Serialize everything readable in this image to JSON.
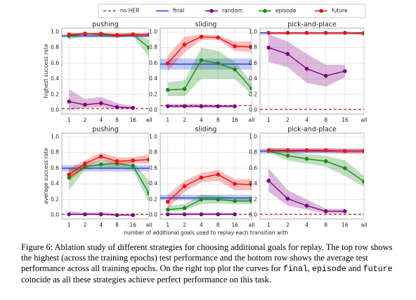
{
  "chart_data": [
    {
      "type": "line",
      "title": "pushing",
      "ylabel": "highest success rate",
      "grid": true,
      "categories": [
        "1",
        "2",
        "4",
        "8",
        "16",
        "all"
      ],
      "ylim": [
        -0.05,
        1.05
      ],
      "yticks": [
        {
          "value": 0,
          "label": "0.0"
        },
        {
          "value": 0.2,
          "label": "0.2"
        },
        {
          "value": 0.4,
          "label": "0.4"
        },
        {
          "value": 0.6,
          "label": "0.6"
        },
        {
          "value": 0.8,
          "label": "0.8"
        },
        {
          "value": 1,
          "label": "1.0"
        }
      ],
      "series": [
        {
          "name": "no HER",
          "color": "#c0392b",
          "dashed": true,
          "values": [
            0.02,
            0.02,
            0.02,
            0.02,
            0.02,
            0.02
          ]
        },
        {
          "name": "final",
          "color": "#1f3fe0",
          "values": [
            0.95,
            0.95,
            0.95,
            0.95,
            0.95,
            0.95
          ],
          "lower": [
            0.93,
            0.93,
            0.93,
            0.93,
            0.93,
            0.93
          ],
          "upper": [
            0.97,
            0.97,
            0.97,
            0.97,
            0.97,
            0.97
          ]
        },
        {
          "name": "random",
          "color": "#800080",
          "marker": true,
          "values": [
            0.11,
            0.07,
            0.09,
            0.04,
            0.03,
            null
          ],
          "lower": [
            0.0,
            0.03,
            0.04,
            0.01,
            0.02,
            null
          ],
          "upper": [
            0.27,
            0.14,
            0.17,
            0.09,
            0.05,
            null
          ]
        },
        {
          "name": "episode",
          "color": "#1a8a1a",
          "marker": true,
          "values": [
            0.95,
            0.98,
            0.97,
            0.96,
            0.97,
            0.8
          ],
          "lower": [
            0.9,
            0.96,
            0.94,
            0.93,
            0.95,
            0.68
          ],
          "upper": [
            0.98,
            0.99,
            0.99,
            0.98,
            0.99,
            0.9
          ]
        },
        {
          "name": "future",
          "color": "#f01010",
          "marker": true,
          "values": [
            0.97,
            0.98,
            0.98,
            0.96,
            0.97,
            0.97
          ],
          "lower": [
            0.95,
            0.97,
            0.97,
            0.93,
            0.95,
            0.95
          ],
          "upper": [
            0.99,
            0.99,
            0.99,
            0.99,
            0.99,
            0.99
          ]
        }
      ]
    },
    {
      "type": "line",
      "title": "sliding",
      "grid": true,
      "categories": [
        "1",
        "2",
        "4",
        "8",
        "16",
        "all"
      ],
      "ylim": [
        -0.05,
        1.05
      ],
      "yticks": [
        {
          "value": 0,
          "label": "0.0"
        },
        {
          "value": 0.2,
          "label": "0.2"
        },
        {
          "value": 0.4,
          "label": "0.4"
        },
        {
          "value": 0.6,
          "label": "0.6"
        },
        {
          "value": 0.8,
          "label": "0.8"
        },
        {
          "value": 1,
          "label": "1.0"
        }
      ],
      "series": [
        {
          "name": "no HER",
          "color": "#c0392b",
          "dashed": true,
          "values": [
            0.06,
            0.06,
            0.06,
            0.06,
            0.06,
            0.06
          ]
        },
        {
          "name": "final",
          "color": "#1f3fe0",
          "values": [
            0.59,
            0.59,
            0.59,
            0.59,
            0.59,
            0.59
          ],
          "lower": [
            0.52,
            0.52,
            0.52,
            0.52,
            0.52,
            0.52
          ],
          "upper": [
            0.66,
            0.66,
            0.66,
            0.66,
            0.66,
            0.66
          ]
        },
        {
          "name": "random",
          "color": "#800080",
          "marker": true,
          "values": [
            0.05,
            0.05,
            0.05,
            0.05,
            0.05,
            null
          ],
          "lower": [
            0.03,
            0.03,
            0.03,
            0.03,
            0.03,
            null
          ],
          "upper": [
            0.08,
            0.08,
            0.08,
            0.07,
            0.07,
            null
          ]
        },
        {
          "name": "episode",
          "color": "#1a8a1a",
          "marker": true,
          "values": [
            0.26,
            0.27,
            0.64,
            0.6,
            0.52,
            0.28
          ],
          "lower": [
            0.18,
            0.18,
            0.4,
            0.4,
            0.4,
            0.2
          ],
          "upper": [
            0.36,
            0.38,
            0.8,
            0.76,
            0.62,
            0.36
          ]
        },
        {
          "name": "future",
          "color": "#f01010",
          "marker": true,
          "values": [
            0.6,
            0.84,
            0.94,
            0.93,
            0.82,
            0.81
          ],
          "lower": [
            0.5,
            0.74,
            0.9,
            0.9,
            0.76,
            0.74
          ],
          "upper": [
            0.7,
            0.94,
            0.97,
            0.96,
            0.88,
            0.88
          ]
        }
      ]
    },
    {
      "type": "line",
      "title": "pick-and-place",
      "grid": true,
      "categories": [
        "1",
        "2",
        "4",
        "8",
        "16",
        "all"
      ],
      "ylim": [
        -0.05,
        1.05
      ],
      "yticks": [
        {
          "value": 0,
          "label": "0.0"
        },
        {
          "value": 0.2,
          "label": "0.2"
        },
        {
          "value": 0.4,
          "label": "0.4"
        },
        {
          "value": 0.6,
          "label": "0.6"
        },
        {
          "value": 0.8,
          "label": "0.8"
        },
        {
          "value": 1,
          "label": "1.0"
        }
      ],
      "series": [
        {
          "name": "no HER",
          "color": "#c0392b",
          "dashed": true,
          "values": [
            0.01,
            0.01,
            0.01,
            0.01,
            0.01,
            0.01
          ]
        },
        {
          "name": "final",
          "color": "#1f3fe0",
          "values": [
            0.99,
            0.99,
            0.99,
            0.99,
            0.99,
            0.99
          ],
          "lower": [
            0.97,
            0.97,
            0.97,
            0.97,
            0.97,
            0.97
          ],
          "upper": [
            1,
            1,
            1,
            1,
            1,
            1
          ]
        },
        {
          "name": "random",
          "color": "#800080",
          "marker": true,
          "values": [
            0.8,
            0.72,
            0.53,
            0.44,
            0.5,
            null
          ],
          "lower": [
            0.62,
            0.55,
            0.35,
            0.3,
            0.42,
            null
          ],
          "upper": [
            0.97,
            0.88,
            0.72,
            0.58,
            0.58,
            null
          ]
        },
        {
          "name": "episode",
          "color": "#1a8a1a",
          "marker": true,
          "values": [
            0.99,
            0.99,
            0.99,
            0.99,
            0.99,
            0.98
          ]
        },
        {
          "name": "future",
          "color": "#f01010",
          "marker": true,
          "values": [
            0.99,
            0.99,
            0.99,
            0.99,
            0.99,
            0.99
          ],
          "lower": [
            0.97,
            0.97,
            0.97,
            0.97,
            0.97,
            0.97
          ],
          "upper": [
            1,
            1,
            1,
            1,
            1,
            1
          ]
        }
      ]
    },
    {
      "type": "line",
      "title": "pushing",
      "ylabel": "average success rate",
      "grid": true,
      "categories": [
        "1",
        "2",
        "4",
        "8",
        "16",
        "all"
      ],
      "ylim": [
        -0.05,
        1.05
      ],
      "yticks": [
        {
          "value": 0,
          "label": "0.0"
        },
        {
          "value": 0.2,
          "label": "0.2"
        },
        {
          "value": 0.4,
          "label": "0.4"
        },
        {
          "value": 0.6,
          "label": "0.6"
        },
        {
          "value": 0.8,
          "label": "0.8"
        },
        {
          "value": 1,
          "label": "1.0"
        }
      ],
      "series": [
        {
          "name": "no HER",
          "color": "#c0392b",
          "dashed": true,
          "values": [
            0.01,
            0.01,
            0.01,
            0.01,
            0.01,
            0.01
          ]
        },
        {
          "name": "final",
          "color": "#1f3fe0",
          "values": [
            0.6,
            0.6,
            0.6,
            0.6,
            0.6,
            0.6
          ],
          "lower": [
            0.56,
            0.56,
            0.56,
            0.56,
            0.56,
            0.56
          ],
          "upper": [
            0.64,
            0.64,
            0.64,
            0.64,
            0.64,
            0.64
          ]
        },
        {
          "name": "random",
          "color": "#800080",
          "marker": true,
          "values": [
            0.01,
            0.01,
            0.01,
            0.0,
            0.0,
            null
          ],
          "lower": [
            0,
            0,
            0,
            0,
            0,
            null
          ],
          "upper": [
            0.05,
            0.03,
            0.04,
            0.02,
            0.01,
            null
          ]
        },
        {
          "name": "episode",
          "color": "#1a8a1a",
          "marker": true,
          "values": [
            0.48,
            0.62,
            0.65,
            0.66,
            0.63,
            0.28
          ],
          "lower": [
            0.32,
            0.58,
            0.6,
            0.6,
            0.58,
            0.16
          ],
          "upper": [
            0.58,
            0.66,
            0.7,
            0.7,
            0.68,
            0.44
          ]
        },
        {
          "name": "future",
          "color": "#f01010",
          "marker": true,
          "values": [
            0.52,
            0.66,
            0.75,
            0.69,
            0.7,
            0.71
          ],
          "lower": [
            0.44,
            0.6,
            0.7,
            0.64,
            0.66,
            0.66
          ],
          "upper": [
            0.6,
            0.7,
            0.8,
            0.74,
            0.74,
            0.78
          ]
        }
      ]
    },
    {
      "type": "line",
      "title": "sliding",
      "xlabel": "number of additional goals used to replay each transition with",
      "grid": true,
      "categories": [
        "1",
        "2",
        "4",
        "8",
        "16",
        "all"
      ],
      "ylim": [
        -0.05,
        1.05
      ],
      "yticks": [
        {
          "value": 0,
          "label": "0.0"
        },
        {
          "value": 0.2,
          "label": "0.2"
        },
        {
          "value": 0.4,
          "label": "0.4"
        },
        {
          "value": 0.6,
          "label": "0.6"
        },
        {
          "value": 0.8,
          "label": "0.8"
        },
        {
          "value": 1,
          "label": "1.0"
        }
      ],
      "series": [
        {
          "name": "no HER",
          "color": "#c0392b",
          "dashed": true,
          "values": [
            0.01,
            0.01,
            0.01,
            0.01,
            0.01,
            0.01
          ]
        },
        {
          "name": "final",
          "color": "#1f3fe0",
          "values": [
            0.22,
            0.22,
            0.22,
            0.22,
            0.22,
            0.22
          ],
          "lower": [
            0.19,
            0.19,
            0.19,
            0.19,
            0.19,
            0.19
          ],
          "upper": [
            0.26,
            0.26,
            0.26,
            0.26,
            0.26,
            0.26
          ]
        },
        {
          "name": "random",
          "color": "#800080",
          "marker": true,
          "values": [
            0.01,
            0.01,
            0.01,
            0.01,
            0.01,
            null
          ],
          "lower": [
            0,
            0,
            0,
            0,
            0,
            null
          ],
          "upper": [
            0.03,
            0.03,
            0.03,
            0.03,
            0.03,
            null
          ]
        },
        {
          "name": "episode",
          "color": "#1a8a1a",
          "marker": true,
          "values": [
            0.07,
            0.09,
            0.2,
            0.2,
            0.18,
            0.18
          ],
          "lower": [
            0.04,
            0.06,
            0.14,
            0.15,
            0.14,
            0.14
          ],
          "upper": [
            0.12,
            0.14,
            0.26,
            0.25,
            0.22,
            0.22
          ]
        },
        {
          "name": "future",
          "color": "#f01010",
          "marker": true,
          "values": [
            0.17,
            0.37,
            0.48,
            0.52,
            0.4,
            0.39
          ],
          "lower": [
            0.08,
            0.3,
            0.42,
            0.44,
            0.32,
            0.32
          ],
          "upper": [
            0.26,
            0.44,
            0.54,
            0.58,
            0.46,
            0.46
          ]
        }
      ]
    },
    {
      "type": "line",
      "title": "pick-and-place",
      "grid": true,
      "categories": [
        "1",
        "2",
        "4",
        "8",
        "16",
        "all"
      ],
      "ylim": [
        -0.05,
        1.05
      ],
      "yticks": [
        {
          "value": 0,
          "label": "0.0"
        },
        {
          "value": 0.2,
          "label": "0.2"
        },
        {
          "value": 0.4,
          "label": "0.4"
        },
        {
          "value": 0.6,
          "label": "0.6"
        },
        {
          "value": 0.8,
          "label": "0.8"
        },
        {
          "value": 1,
          "label": "1.0"
        }
      ],
      "series": [
        {
          "name": "no HER",
          "color": "#c0392b",
          "dashed": true,
          "values": [
            0.01,
            0.01,
            0.01,
            0.01,
            0.01,
            0.01
          ]
        },
        {
          "name": "final",
          "color": "#1f3fe0",
          "values": [
            0.82,
            0.82,
            0.82,
            0.82,
            0.82,
            0.82
          ],
          "lower": [
            0.79,
            0.79,
            0.79,
            0.79,
            0.79,
            0.79
          ],
          "upper": [
            0.85,
            0.85,
            0.85,
            0.85,
            0.85,
            0.85
          ]
        },
        {
          "name": "random",
          "color": "#800080",
          "marker": true,
          "values": [
            0.44,
            0.21,
            0.12,
            0.05,
            0.05,
            null
          ],
          "lower": [
            0.3,
            0.12,
            0.07,
            0.02,
            0.02,
            null
          ],
          "upper": [
            0.6,
            0.32,
            0.2,
            0.08,
            0.08,
            null
          ]
        },
        {
          "name": "episode",
          "color": "#1a8a1a",
          "marker": true,
          "values": [
            0.82,
            0.76,
            0.72,
            0.69,
            0.6,
            0.43
          ],
          "lower": [
            0.8,
            0.7,
            0.66,
            0.62,
            0.5,
            0.36
          ],
          "upper": [
            0.86,
            0.82,
            0.78,
            0.76,
            0.7,
            0.5
          ]
        },
        {
          "name": "future",
          "color": "#f01010",
          "marker": true,
          "values": [
            0.83,
            0.83,
            0.83,
            0.83,
            0.82,
            0.82
          ],
          "lower": [
            0.8,
            0.8,
            0.8,
            0.8,
            0.79,
            0.79
          ],
          "upper": [
            0.86,
            0.86,
            0.86,
            0.86,
            0.85,
            0.85
          ]
        }
      ]
    }
  ],
  "caption": [
    "Figure 6: Ablation study of different strategies for choosing additional goals for replay. The top row shows the highest (across the training epochs) test performance and the bottom row shows the average test performance across all training epochs. On the right top plot the curves for ",
    "final",
    ", ",
    "episode",
    " and ",
    "future",
    " coincide as all these strategies achieve perfect performance on this task."
  ]
}
